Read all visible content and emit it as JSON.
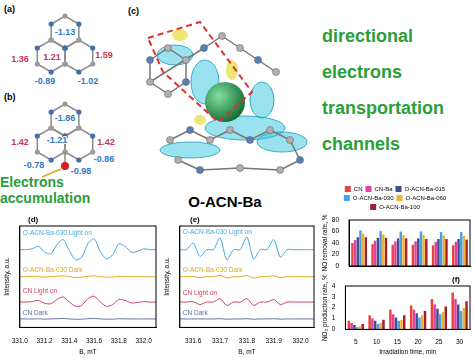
{
  "figure": {
    "a": {
      "label": "(a)",
      "charges": [
        -1.13,
        1.36,
        1.59,
        1.21,
        -0.89,
        -1.02
      ]
    },
    "b": {
      "label": "(b)",
      "charges": [
        1.42,
        -1.86,
        1.42,
        -1.21,
        -0.78,
        -0.98,
        -0.86
      ],
      "annotation": "Electrons accumulation"
    },
    "c": {
      "label": "(c)",
      "caption": "O-ACN-Ba",
      "annotation": "directional electrons transportation channels"
    }
  },
  "chart_data": [
    {
      "type": "line",
      "title": "(d)",
      "xlabel": "B, mT",
      "ylabel": "Intensity, a.u.",
      "tick_labels": "x",
      "grid": false,
      "xlim": [
        331,
        332.1
      ],
      "xticks": [
        {
          "value": 331,
          "label": "331.0"
        },
        331.2,
        331.4,
        331.6,
        331.8,
        {
          "value": 332,
          "label": "332.0"
        }
      ],
      "ylim": [
        0,
        12
      ],
      "x": [
        331,
        331.05,
        331.1,
        331.15,
        331.2,
        331.25,
        331.3,
        331.35,
        331.4,
        331.45,
        331.5,
        331.55,
        331.6,
        331.65,
        331.7,
        331.75,
        331.8,
        331.85,
        331.9,
        331.95,
        332,
        332.05,
        332.1
      ],
      "series": [
        {
          "name": "O-ACN-Ba-030 Light on",
          "color": "#3fa9d8",
          "values": [
            9.2,
            9.2,
            9.3,
            9.6,
            8.9,
            8.7,
            9.8,
            10.4,
            9.1,
            8.0,
            8.3,
            9.9,
            10.5,
            9.0,
            8.1,
            8.6,
            9.9,
            9.6,
            8.9,
            9.0,
            9.3,
            9.2,
            9.2
          ]
        },
        {
          "name": "O-ACN-Ba-030 Dark",
          "color": "#d9a81c",
          "values": [
            6,
            6,
            6.05,
            6,
            5.95,
            6,
            6.05,
            6.1,
            6,
            5.9,
            5.95,
            6.05,
            6.1,
            6,
            5.95,
            5.95,
            6.05,
            6,
            6,
            6,
            6,
            6,
            6
          ]
        },
        {
          "name": "CN Light on",
          "color": "#d04060",
          "values": [
            3.0,
            3.0,
            3.05,
            3.2,
            2.85,
            2.8,
            3.3,
            3.6,
            3.0,
            2.5,
            2.6,
            3.4,
            3.7,
            3.0,
            2.5,
            2.7,
            3.3,
            3.2,
            2.9,
            2.95,
            3.05,
            3.0,
            3.0
          ]
        },
        {
          "name": "CN Dark",
          "color": "#6070a0",
          "values": [
            1,
            1,
            1,
            1.02,
            0.98,
            1,
            1.03,
            1.05,
            1,
            0.96,
            0.97,
            1.03,
            1.05,
            1,
            0.97,
            0.98,
            1.02,
            1.01,
            1,
            1,
            1,
            1,
            1
          ]
        }
      ]
    },
    {
      "type": "line",
      "title": "(e)",
      "xlabel": "B, mT",
      "ylabel": "Intensity, a.u.",
      "tick_labels": "x",
      "grid": false,
      "xlim": [
        331.55,
        332.05
      ],
      "xticks": [
        331.6,
        331.7,
        331.8,
        331.9,
        {
          "value": 332,
          "label": "332.0"
        }
      ],
      "ylim": [
        0,
        12
      ],
      "x": [
        331.55,
        331.575,
        331.6,
        331.625,
        331.65,
        331.675,
        331.7,
        331.725,
        331.75,
        331.775,
        331.8,
        331.825,
        331.85,
        331.875,
        331.9,
        331.925,
        331.95,
        331.975,
        332,
        332.025,
        332.05
      ],
      "series": [
        {
          "name": "O-ACN-Ba-030 Light on",
          "color": "#3fa9d8",
          "values": [
            9.2,
            9.2,
            10.0,
            8.4,
            9.2,
            9.2,
            10.6,
            8.0,
            9.2,
            9.2,
            10.7,
            8.1,
            9.2,
            9.2,
            10.4,
            8.3,
            9.2,
            9.2,
            9.2,
            9.2,
            9.2
          ]
        },
        {
          "name": "O-ACN-Ba-030 Dark",
          "color": "#d9a81c",
          "values": [
            6,
            6,
            6.02,
            5.9,
            6,
            6,
            6.15,
            5.85,
            6,
            6,
            6.15,
            5.85,
            6,
            6,
            6.1,
            5.9,
            6,
            6,
            6,
            6,
            6
          ]
        },
        {
          "name": "CN Light on",
          "color": "#d04060",
          "values": [
            3,
            3,
            3.05,
            2.7,
            3,
            3,
            3.4,
            2.6,
            3,
            3,
            3.4,
            2.6,
            3,
            3,
            3.3,
            2.7,
            3,
            3,
            3,
            3,
            3
          ]
        },
        {
          "name": "CN Dark",
          "color": "#6070a0",
          "values": [
            1,
            1,
            1,
            1,
            1,
            1,
            1.03,
            0.97,
            1,
            1,
            1.03,
            0.97,
            1,
            1,
            1.02,
            0.98,
            1,
            1,
            1,
            1,
            1
          ]
        }
      ]
    },
    {
      "type": "bar",
      "ylabel": "NO removal rate, %",
      "tick_labels": "y",
      "grid": false,
      "legend": "top",
      "ylim": [
        0,
        80
      ],
      "yticks": [
        0,
        20,
        40,
        60,
        80
      ],
      "categories": [
        null,
        null,
        null,
        null,
        null,
        null
      ],
      "series": [
        {
          "name": "CN",
          "color": "#e8433f",
          "values": [
            40,
            38,
            37,
            37,
            36,
            36
          ]
        },
        {
          "name": "CN-Ba",
          "color": "#e040a0",
          "values": [
            45,
            44,
            43,
            43,
            42,
            42
          ]
        },
        {
          "name": "O-ACN-Ba-015",
          "color": "#3d4f8c",
          "values": [
            50,
            49,
            48,
            48,
            47,
            47
          ]
        },
        {
          "name": "O-ACN-Ba-030",
          "color": "#4aa0e0",
          "values": [
            62,
            61,
            60,
            60,
            59,
            59
          ]
        },
        {
          "name": "O-ACN-Ba-060",
          "color": "#f0b030",
          "values": [
            56,
            55,
            54,
            54,
            53,
            53
          ]
        },
        {
          "name": "O-ACN-Ba-100",
          "color": "#a02030",
          "values": [
            50,
            49,
            48,
            47,
            47,
            46
          ]
        }
      ]
    },
    {
      "type": "bar",
      "title": "(f)",
      "xlabel": "Irradiation time, min",
      "ylabel": "NO₂ production rate, %",
      "grid": false,
      "ylim": [
        0,
        4
      ],
      "yticks": [
        0,
        1,
        2,
        3,
        4
      ],
      "categories": [
        "5",
        "10",
        "15",
        "20",
        "25",
        "30"
      ],
      "series": [
        {
          "color": "#e8433f",
          "values": [
            0.8,
            1.3,
            1.8,
            2.2,
            2.8,
            3.4
          ]
        },
        {
          "color": "#e040a0",
          "values": [
            0.6,
            1.0,
            1.4,
            1.8,
            2.3,
            2.8
          ]
        },
        {
          "color": "#3d4f8c",
          "values": [
            0.4,
            0.8,
            1.1,
            1.5,
            1.9,
            2.3
          ]
        },
        {
          "color": "#4aa0e0",
          "values": [
            0.2,
            0.5,
            0.8,
            1.1,
            1.4,
            1.7
          ]
        },
        {
          "color": "#f0b030",
          "values": [
            0.3,
            0.6,
            0.9,
            1.3,
            1.6,
            2.0
          ]
        },
        {
          "color": "#a02030",
          "values": [
            0.5,
            0.9,
            1.3,
            1.7,
            2.1,
            2.6
          ]
        }
      ]
    }
  ]
}
